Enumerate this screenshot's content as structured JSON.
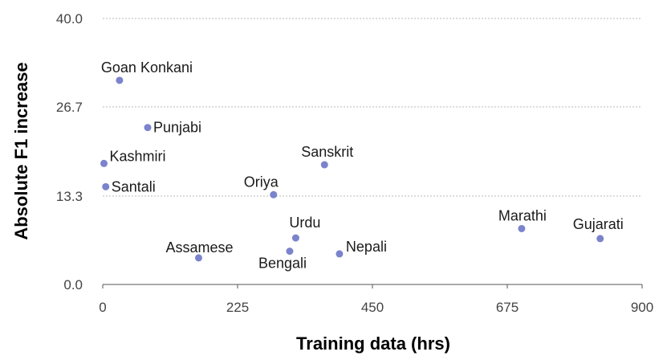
{
  "chart_data": {
    "type": "scatter",
    "xlabel": "Training data (hrs)",
    "ylabel": "Absolute F1 increase",
    "xlim": [
      0,
      900
    ],
    "ylim": [
      0,
      40
    ],
    "xticks": [
      "0",
      "225",
      "450",
      "675",
      "900"
    ],
    "yticks": [
      "0.0",
      "13.3",
      "26.7",
      "40.0"
    ],
    "grid": "horizontal-dotted",
    "marker_color": "#7b83cc",
    "points": [
      {
        "label": "Goan Konkani",
        "x": 28,
        "y": 30.7
      },
      {
        "label": "Punjabi",
        "x": 75,
        "y": 23.6
      },
      {
        "label": "Kashmiri",
        "x": 2,
        "y": 18.2
      },
      {
        "label": "Santali",
        "x": 5,
        "y": 14.7
      },
      {
        "label": "Sanskrit",
        "x": 370,
        "y": 18.0
      },
      {
        "label": "Oriya",
        "x": 285,
        "y": 13.5
      },
      {
        "label": "Urdu",
        "x": 322,
        "y": 7.0
      },
      {
        "label": "Assamese",
        "x": 160,
        "y": 4.0
      },
      {
        "label": "Bengali",
        "x": 312,
        "y": 5.0
      },
      {
        "label": "Nepali",
        "x": 395,
        "y": 4.6
      },
      {
        "label": "Marathi",
        "x": 699,
        "y": 8.4
      },
      {
        "label": "Gujarati",
        "x": 830,
        "y": 6.9
      }
    ]
  }
}
